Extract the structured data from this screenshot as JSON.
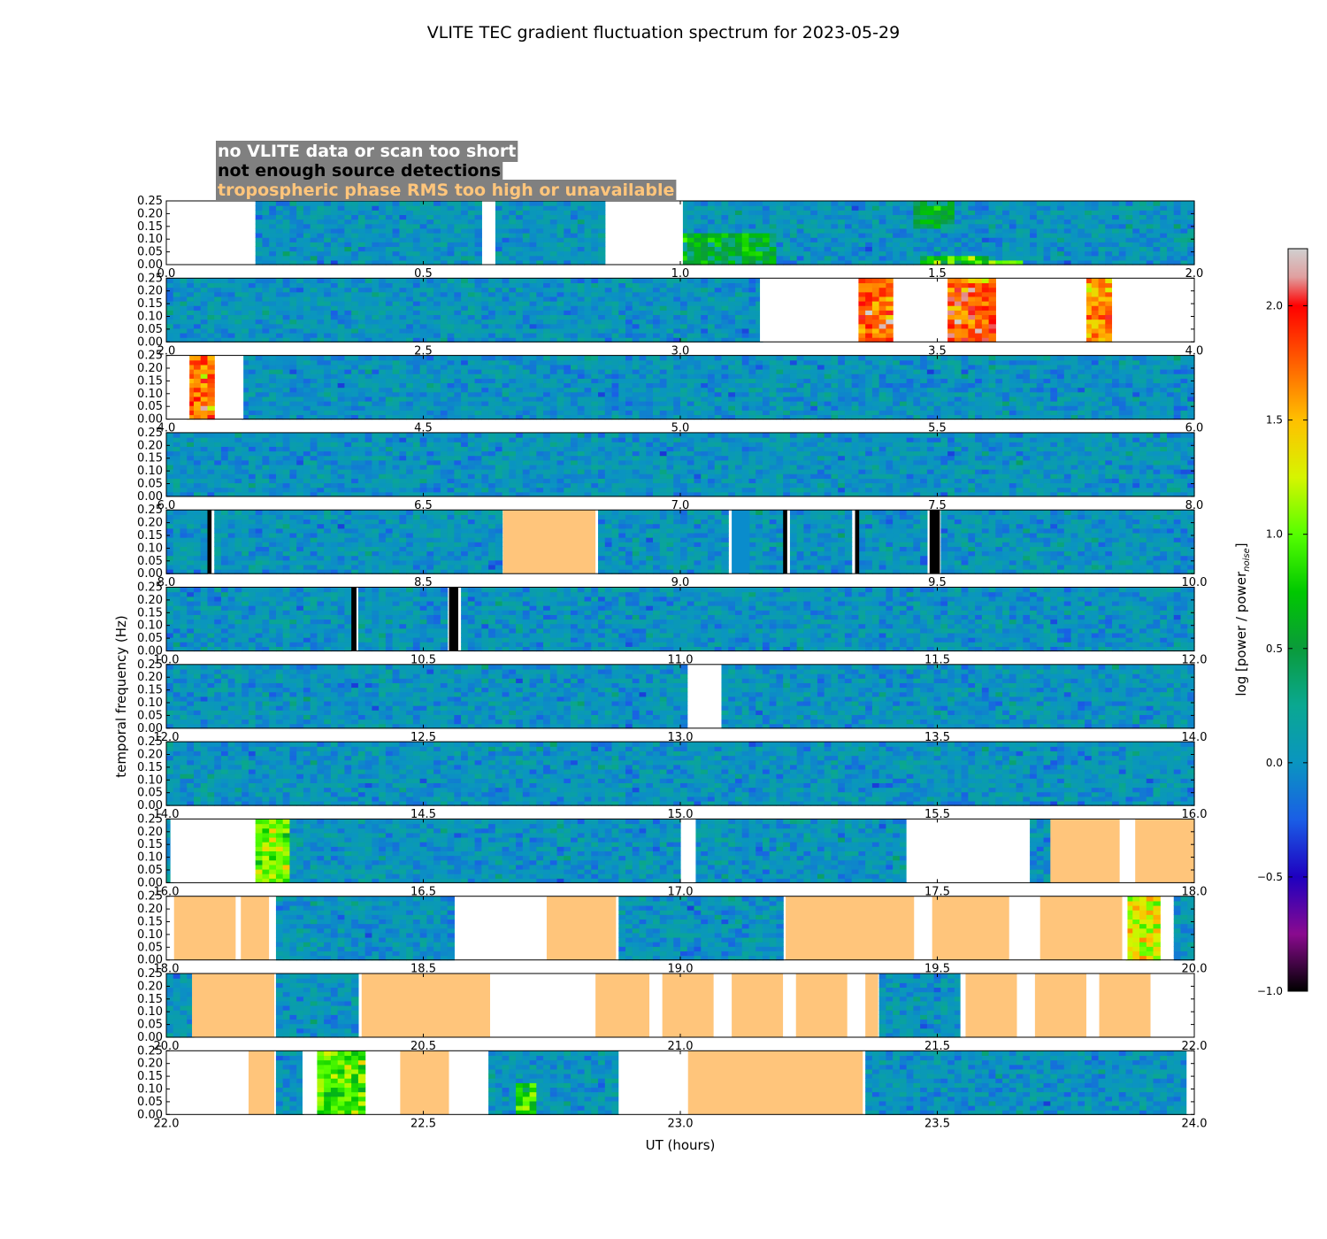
{
  "chart_data": {
    "type": "heatmap",
    "title": "VLITE TEC gradient fluctuation spectrum for 2023-05-29",
    "xlabel": "UT (hours)",
    "ylabel": "temporal frequency (Hz)",
    "colorbar_label": "log [power / power",
    "colorbar_label_sub": "noise",
    "colorbar_label_end": "]",
    "colorbar_range": [
      -1.0,
      2.25
    ],
    "colorbar_ticks": [
      "−1.0",
      "−0.5",
      "0.0",
      "0.5",
      "1.0",
      "1.5",
      "2.0"
    ],
    "colorbar_tick_values": [
      -1.0,
      -0.5,
      0.0,
      0.5,
      1.0,
      1.5,
      2.0
    ],
    "ylim": [
      0,
      0.25
    ],
    "y_ticks": [
      "0.00",
      "0.05",
      "0.10",
      "0.15",
      "0.20",
      "0.25"
    ],
    "y_tick_values": [
      0.0,
      0.05,
      0.1,
      0.15,
      0.2,
      0.25
    ],
    "grid": false,
    "legend": {
      "placement": "top-left",
      "background": "#808080",
      "entries": [
        {
          "label": "no VLITE data or scan too short",
          "color": "#ffffff"
        },
        {
          "label": "not enough source detections",
          "color": "#000000"
        },
        {
          "label": "tropospheric phase RMS too high or unavailable",
          "color": "#ffc57b"
        }
      ]
    },
    "flag_colors": {
      "nodata": "#ffffff",
      "nodet": "#000000",
      "tropo": "#ffc57b",
      "uniform": "#0a8ccc"
    },
    "panels": [
      {
        "xlim": [
          0.0,
          2.0
        ],
        "x_ticks": [
          "0.0",
          "0.5",
          "1.0",
          "1.5",
          "2.0"
        ],
        "flags": [
          {
            "type": "nodata",
            "x": [
              0.0,
              0.17
            ]
          },
          {
            "type": "nodata",
            "x": [
              0.615,
              0.64
            ]
          },
          {
            "type": "nodata",
            "x": [
              0.86,
              1.005
            ]
          }
        ],
        "hot": [
          {
            "x": [
              1.06,
              1.18
            ],
            "f": [
              0.0,
              0.06
            ],
            "level": 1.0
          },
          {
            "x": [
              1.47,
              1.6
            ],
            "f": [
              0.0,
              0.04
            ],
            "level": 0.8
          },
          {
            "x": [
              1.6,
              1.66
            ],
            "f": [
              0.0,
              0.02
            ],
            "level": 1.0
          },
          {
            "x": [
              1.46,
              1.53
            ],
            "f": [
              0.15,
              0.25
            ],
            "level": 0.5
          },
          {
            "x": [
              1.0,
              1.18
            ],
            "f": [
              0.0,
              0.12
            ],
            "level": 0.55
          }
        ]
      },
      {
        "xlim": [
          2.0,
          4.0
        ],
        "x_ticks": [
          "2.0",
          "2.5",
          "3.0",
          "3.5",
          "4.0"
        ],
        "flags": [
          {
            "type": "nodata",
            "x": [
              3.155,
              3.34
            ]
          },
          {
            "type": "nodata",
            "x": [
              3.42,
              3.515
            ]
          },
          {
            "type": "nodata",
            "x": [
              3.615,
              3.79
            ]
          },
          {
            "type": "nodata",
            "x": [
              3.84,
              4.0
            ]
          }
        ],
        "hot": [
          {
            "x": [
              3.34,
              3.42
            ],
            "f": [
              0.0,
              0.25
            ],
            "level": 1.75
          },
          {
            "x": [
              3.515,
              3.615
            ],
            "f": [
              0.0,
              0.25
            ],
            "level": 1.8
          },
          {
            "x": [
              3.79,
              3.84
            ],
            "f": [
              0.0,
              0.25
            ],
            "level": 1.6
          }
        ]
      },
      {
        "xlim": [
          4.0,
          6.0
        ],
        "x_ticks": [
          "4.0",
          "4.5",
          "5.0",
          "5.5",
          "6.0"
        ],
        "flags": [
          {
            "type": "nodata",
            "x": [
              4.0,
              4.045
            ]
          },
          {
            "type": "nodata",
            "x": [
              4.1,
              4.15
            ]
          }
        ],
        "hot": [
          {
            "x": [
              4.045,
              4.1
            ],
            "f": [
              0.0,
              0.25
            ],
            "level": 1.7
          }
        ]
      },
      {
        "xlim": [
          6.0,
          8.0
        ],
        "x_ticks": [
          "6.0",
          "6.5",
          "7.0",
          "7.5",
          "8.0"
        ],
        "flags": [],
        "hot": []
      },
      {
        "xlim": [
          8.0,
          10.0
        ],
        "x_ticks": [
          "8.0",
          "8.5",
          "9.0",
          "9.5",
          "10.0"
        ],
        "flags": [
          {
            "type": "nodet",
            "x": [
              8.08,
              8.088
            ]
          },
          {
            "type": "tropo",
            "x": [
              8.655,
              8.835
            ]
          },
          {
            "type": "uniform",
            "x": [
              9.1,
              9.135
            ]
          },
          {
            "type": "nodet",
            "x": [
              9.2,
              9.208
            ]
          },
          {
            "type": "nodet",
            "x": [
              9.34,
              9.348
            ]
          },
          {
            "type": "nodet",
            "x": [
              9.485,
              9.505
            ]
          }
        ],
        "hot": []
      },
      {
        "xlim": [
          10.0,
          12.0
        ],
        "x_ticks": [
          "10.0",
          "10.5",
          "11.0",
          "11.5",
          "12.0"
        ],
        "flags": [
          {
            "type": "nodet",
            "x": [
              10.36,
              10.37
            ]
          },
          {
            "type": "nodet",
            "x": [
              10.55,
              10.568
            ]
          }
        ],
        "hot": []
      },
      {
        "xlim": [
          12.0,
          14.0
        ],
        "x_ticks": [
          "12.0",
          "12.5",
          "13.0",
          "13.5",
          "14.0"
        ],
        "flags": [
          {
            "type": "nodata",
            "x": [
              13.015,
              13.075
            ]
          }
        ],
        "hot": []
      },
      {
        "xlim": [
          14.0,
          16.0
        ],
        "x_ticks": [
          "14.0",
          "14.5",
          "15.0",
          "15.5",
          "16.0"
        ],
        "flags": [],
        "hot": []
      },
      {
        "xlim": [
          16.0,
          18.0
        ],
        "x_ticks": [
          "16.0",
          "16.5",
          "17.0",
          "17.5",
          "18.0"
        ],
        "flags": [
          {
            "type": "nodata",
            "x": [
              16.008,
              16.17
            ]
          },
          {
            "type": "nodata",
            "x": [
              17.005,
              17.03
            ]
          },
          {
            "type": "nodata",
            "x": [
              17.44,
              17.675
            ]
          },
          {
            "type": "tropo",
            "x": [
              17.72,
              17.855
            ]
          },
          {
            "type": "nodata",
            "x": [
              17.855,
              17.885
            ]
          },
          {
            "type": "tropo",
            "x": [
              17.885,
              18.0
            ]
          }
        ],
        "hot": [
          {
            "x": [
              16.17,
              16.24
            ],
            "f": [
              0.0,
              0.25
            ],
            "level": 1.05
          }
        ]
      },
      {
        "xlim": [
          18.0,
          20.0
        ],
        "x_ticks": [
          "18.0",
          "18.5",
          "19.0",
          "19.5",
          "20.0"
        ],
        "flags": [
          {
            "type": "nodata",
            "x": [
              18.0,
              18.015
            ]
          },
          {
            "type": "tropo",
            "x": [
              18.015,
              18.135
            ]
          },
          {
            "type": "nodata",
            "x": [
              18.135,
              18.145
            ]
          },
          {
            "type": "tropo",
            "x": [
              18.145,
              18.2
            ]
          },
          {
            "type": "nodata",
            "x": [
              18.2,
              18.21
            ]
          },
          {
            "type": "nodata",
            "x": [
              18.565,
              18.74
            ]
          },
          {
            "type": "tropo",
            "x": [
              18.74,
              18.875
            ]
          },
          {
            "type": "tropo",
            "x": [
              19.205,
              19.455
            ]
          },
          {
            "type": "nodata",
            "x": [
              19.455,
              19.49
            ]
          },
          {
            "type": "tropo",
            "x": [
              19.49,
              19.64
            ]
          },
          {
            "type": "nodata",
            "x": [
              19.64,
              19.7
            ]
          },
          {
            "type": "tropo",
            "x": [
              19.7,
              19.86
            ]
          },
          {
            "type": "nodata",
            "x": [
              19.86,
              19.87
            ]
          },
          {
            "type": "nodata",
            "x": [
              19.94,
              19.955
            ]
          }
        ],
        "hot": [
          {
            "x": [
              19.87,
              19.94
            ],
            "f": [
              0.0,
              0.25
            ],
            "level": 1.3
          }
        ]
      },
      {
        "xlim": [
          20.0,
          22.0
        ],
        "x_ticks": [
          "20.0",
          "20.5",
          "21.0",
          "21.5",
          "22.0"
        ],
        "flags": [
          {
            "type": "tropo",
            "x": [
              20.05,
              20.21
            ]
          },
          {
            "type": "tropo",
            "x": [
              20.38,
              20.63
            ]
          },
          {
            "type": "nodata",
            "x": [
              20.63,
              20.835
            ]
          },
          {
            "type": "tropo",
            "x": [
              20.835,
              20.94
            ]
          },
          {
            "type": "nodata",
            "x": [
              20.94,
              20.965
            ]
          },
          {
            "type": "tropo",
            "x": [
              20.965,
              21.065
            ]
          },
          {
            "type": "nodata",
            "x": [
              21.065,
              21.1
            ]
          },
          {
            "type": "tropo",
            "x": [
              21.1,
              21.2
            ]
          },
          {
            "type": "nodata",
            "x": [
              21.2,
              21.225
            ]
          },
          {
            "type": "tropo",
            "x": [
              21.225,
              21.325
            ]
          },
          {
            "type": "nodata",
            "x": [
              21.325,
              21.36
            ]
          },
          {
            "type": "tropo",
            "x": [
              21.36,
              21.385
            ]
          },
          {
            "type": "nodata",
            "x": [
              21.545,
              21.555
            ]
          },
          {
            "type": "tropo",
            "x": [
              21.555,
              21.655
            ]
          },
          {
            "type": "nodata",
            "x": [
              21.655,
              21.69
            ]
          },
          {
            "type": "tropo",
            "x": [
              21.69,
              21.79
            ]
          },
          {
            "type": "nodata",
            "x": [
              21.79,
              21.815
            ]
          },
          {
            "type": "tropo",
            "x": [
              21.815,
              21.915
            ]
          },
          {
            "type": "nodata",
            "x": [
              21.915,
              22.0
            ]
          }
        ],
        "hot": []
      },
      {
        "xlim": [
          22.0,
          24.0
        ],
        "x_ticks": [
          "22.0",
          "22.5",
          "23.0",
          "23.5",
          "24.0"
        ],
        "flags": [
          {
            "type": "nodata",
            "x": [
              22.0,
              22.16
            ]
          },
          {
            "type": "tropo",
            "x": [
              22.16,
              22.21
            ]
          },
          {
            "type": "nodata",
            "x": [
              22.265,
              22.29
            ]
          },
          {
            "type": "nodata",
            "x": [
              22.39,
              22.455
            ]
          },
          {
            "type": "tropo",
            "x": [
              22.455,
              22.55
            ]
          },
          {
            "type": "nodata",
            "x": [
              22.55,
              22.62
            ]
          },
          {
            "type": "nodata",
            "x": [
              22.88,
              23.015
            ]
          },
          {
            "type": "tropo",
            "x": [
              23.015,
              23.355
            ]
          },
          {
            "type": "nodata",
            "x": [
              23.985,
              24.0
            ]
          }
        ],
        "hot": [
          {
            "x": [
              22.29,
              22.39
            ],
            "f": [
              0.0,
              0.25
            ],
            "level": 0.95
          },
          {
            "x": [
              22.68,
              22.72
            ],
            "f": [
              0.0,
              0.12
            ],
            "level": 0.8
          }
        ]
      }
    ]
  }
}
